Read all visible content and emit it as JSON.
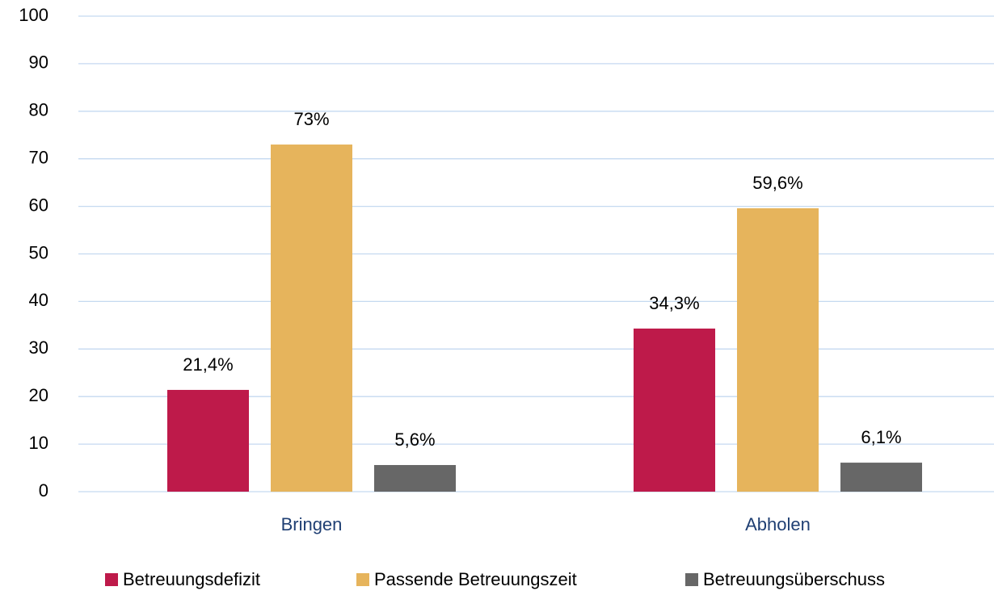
{
  "chart_data": {
    "type": "bar",
    "categories": [
      "Bringen",
      "Abholen"
    ],
    "series": [
      {
        "name": "Betreuungsdefizit",
        "color": "#be1a4a",
        "values": [
          21.4,
          34.3
        ],
        "value_labels": [
          "21,4%",
          "34,3%"
        ]
      },
      {
        "name": "Passende Betreuungszeit",
        "color": "#e6b45c",
        "values": [
          73,
          59.6
        ],
        "value_labels": [
          "73%",
          "59,6%"
        ]
      },
      {
        "name": "Betreuungsüberschuss",
        "color": "#676767",
        "values": [
          5.6,
          6.1
        ],
        "value_labels": [
          "5,6%",
          "6,1%"
        ]
      }
    ],
    "ylim": [
      0,
      100
    ],
    "yticks": [
      0,
      10,
      20,
      30,
      40,
      50,
      60,
      70,
      80,
      90,
      100
    ],
    "grid": true,
    "legend": "bottom"
  }
}
